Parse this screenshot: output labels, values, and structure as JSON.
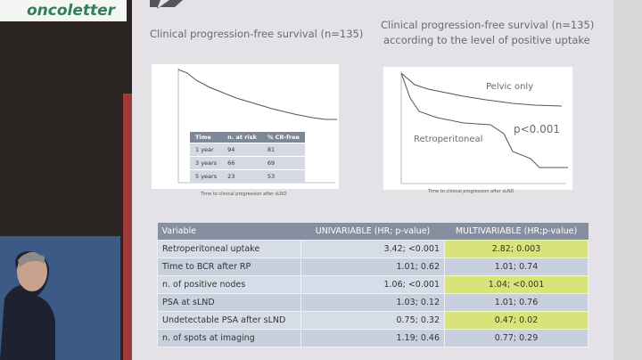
{
  "logo": "oncoletter",
  "plots": [
    {
      "title": "Clinical progression-free survival (n=135)",
      "x_label": "Time to clinical progression after sLND",
      "table": {
        "header": [
          "Time",
          "n. at risk",
          "% CR-free"
        ],
        "rows": [
          [
            "1 year",
            "94",
            "81"
          ],
          [
            "3 years",
            "66",
            "69"
          ],
          [
            "5 years",
            "23",
            "53"
          ]
        ]
      }
    },
    {
      "title": [
        "Clinical progression-free survival (n=135)",
        "according to the level of positive uptake"
      ],
      "x_label": "Time to clinical progression after sLND",
      "labels": [
        "Pelvic only",
        "Retroperitoneal",
        "p<0.001"
      ]
    }
  ],
  "table": {
    "header": [
      "Variable",
      "UNIVARIABLE (HR; p-value)",
      "MULTIVARIABLE (HR;p-value)"
    ],
    "rows": [
      [
        "Retroperitoneal uptake",
        "3.42; <0.001",
        "2.82; 0.003"
      ],
      [
        "Time to BCR after RP",
        "1.01; 0.62",
        "1.01; 0.74"
      ],
      [
        "n. of positive nodes",
        "1.06; <0.001",
        "1.04; <0.001"
      ],
      [
        "PSA at sLND",
        "1.03; 0.12",
        "1.01; 0.76"
      ],
      [
        "Undetectable PSA after sLND",
        "0.75; 0.32",
        "0.47; 0.02"
      ],
      [
        "n. of spots at imaging",
        "1.19; 0.46",
        "0.77; 0.29"
      ]
    ]
  }
}
